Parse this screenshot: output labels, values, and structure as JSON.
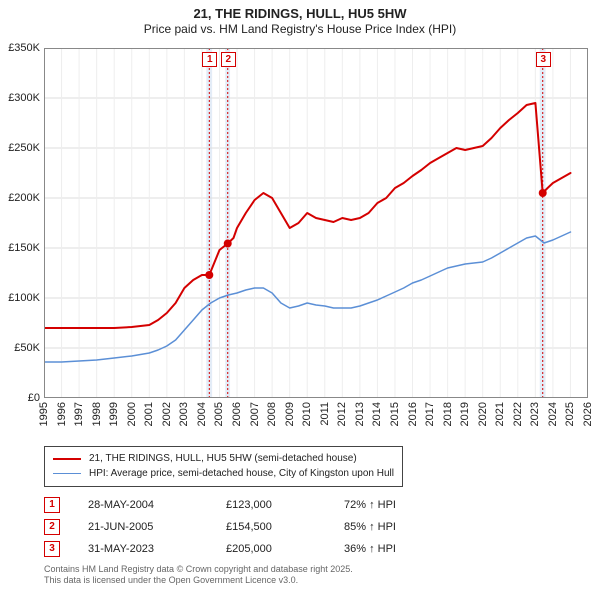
{
  "title_line1": "21, THE RIDINGS, HULL, HU5 5HW",
  "title_line2": "Price paid vs. HM Land Registry's House Price Index (HPI)",
  "chart": {
    "type": "line",
    "x": {
      "min": 1995,
      "max": 2026,
      "tick_step": 1,
      "tick_fontsize": 11,
      "tick_color": "#222222"
    },
    "y": {
      "min": 0,
      "max": 350000,
      "tick_step": 50000,
      "tick_labels": [
        "£0",
        "£50K",
        "£100K",
        "£150K",
        "£200K",
        "£250K",
        "£300K",
        "£350K"
      ],
      "tick_fontsize": 11,
      "tick_color": "#222222"
    },
    "background_color": "#ffffff",
    "grid_color_major": "#dddddd",
    "grid_color_minor": "#eeeeee",
    "frame_color": "#888888",
    "series": [
      {
        "id": "price_paid",
        "label": "21, THE RIDINGS, HULL, HU5 5HW (semi-detached house)",
        "color": "#d40000",
        "line_width": 2,
        "points": [
          [
            1995.0,
            70000
          ],
          [
            1996.0,
            70000
          ],
          [
            1997.0,
            70000
          ],
          [
            1998.0,
            70000
          ],
          [
            1999.0,
            70000
          ],
          [
            2000.0,
            71000
          ],
          [
            2001.0,
            73000
          ],
          [
            2001.5,
            78000
          ],
          [
            2002.0,
            85000
          ],
          [
            2002.5,
            95000
          ],
          [
            2003.0,
            110000
          ],
          [
            2003.5,
            118000
          ],
          [
            2004.0,
            123000
          ],
          [
            2004.42,
            123000
          ],
          [
            2004.7,
            135000
          ],
          [
            2005.0,
            148000
          ],
          [
            2005.47,
            154500
          ],
          [
            2005.8,
            160000
          ],
          [
            2006.0,
            170000
          ],
          [
            2006.5,
            185000
          ],
          [
            2007.0,
            198000
          ],
          [
            2007.5,
            205000
          ],
          [
            2008.0,
            200000
          ],
          [
            2008.5,
            185000
          ],
          [
            2009.0,
            170000
          ],
          [
            2009.5,
            175000
          ],
          [
            2010.0,
            185000
          ],
          [
            2010.5,
            180000
          ],
          [
            2011.0,
            178000
          ],
          [
            2011.5,
            176000
          ],
          [
            2012.0,
            180000
          ],
          [
            2012.5,
            178000
          ],
          [
            2013.0,
            180000
          ],
          [
            2013.5,
            185000
          ],
          [
            2014.0,
            195000
          ],
          [
            2014.5,
            200000
          ],
          [
            2015.0,
            210000
          ],
          [
            2015.5,
            215000
          ],
          [
            2016.0,
            222000
          ],
          [
            2016.5,
            228000
          ],
          [
            2017.0,
            235000
          ],
          [
            2017.5,
            240000
          ],
          [
            2018.0,
            245000
          ],
          [
            2018.5,
            250000
          ],
          [
            2019.0,
            248000
          ],
          [
            2019.5,
            250000
          ],
          [
            2020.0,
            252000
          ],
          [
            2020.5,
            260000
          ],
          [
            2021.0,
            270000
          ],
          [
            2021.5,
            278000
          ],
          [
            2022.0,
            285000
          ],
          [
            2022.5,
            293000
          ],
          [
            2023.0,
            295000
          ],
          [
            2023.42,
            205000
          ],
          [
            2023.7,
            210000
          ],
          [
            2024.0,
            215000
          ],
          [
            2024.5,
            220000
          ],
          [
            2025.0,
            225000
          ]
        ]
      },
      {
        "id": "hpi",
        "label": "HPI: Average price, semi-detached house, City of Kingston upon Hull",
        "color": "#5b8fd6",
        "line_width": 1.5,
        "points": [
          [
            1995.0,
            36000
          ],
          [
            1996.0,
            36000
          ],
          [
            1997.0,
            37000
          ],
          [
            1998.0,
            38000
          ],
          [
            1999.0,
            40000
          ],
          [
            2000.0,
            42000
          ],
          [
            2001.0,
            45000
          ],
          [
            2001.5,
            48000
          ],
          [
            2002.0,
            52000
          ],
          [
            2002.5,
            58000
          ],
          [
            2003.0,
            68000
          ],
          [
            2003.5,
            78000
          ],
          [
            2004.0,
            88000
          ],
          [
            2004.5,
            95000
          ],
          [
            2005.0,
            100000
          ],
          [
            2005.5,
            103000
          ],
          [
            2006.0,
            105000
          ],
          [
            2006.5,
            108000
          ],
          [
            2007.0,
            110000
          ],
          [
            2007.5,
            110000
          ],
          [
            2008.0,
            105000
          ],
          [
            2008.5,
            95000
          ],
          [
            2009.0,
            90000
          ],
          [
            2009.5,
            92000
          ],
          [
            2010.0,
            95000
          ],
          [
            2010.5,
            93000
          ],
          [
            2011.0,
            92000
          ],
          [
            2011.5,
            90000
          ],
          [
            2012.0,
            90000
          ],
          [
            2012.5,
            90000
          ],
          [
            2013.0,
            92000
          ],
          [
            2013.5,
            95000
          ],
          [
            2014.0,
            98000
          ],
          [
            2014.5,
            102000
          ],
          [
            2015.0,
            106000
          ],
          [
            2015.5,
            110000
          ],
          [
            2016.0,
            115000
          ],
          [
            2016.5,
            118000
          ],
          [
            2017.0,
            122000
          ],
          [
            2017.5,
            126000
          ],
          [
            2018.0,
            130000
          ],
          [
            2018.5,
            132000
          ],
          [
            2019.0,
            134000
          ],
          [
            2019.5,
            135000
          ],
          [
            2020.0,
            136000
          ],
          [
            2020.5,
            140000
          ],
          [
            2021.0,
            145000
          ],
          [
            2021.5,
            150000
          ],
          [
            2022.0,
            155000
          ],
          [
            2022.5,
            160000
          ],
          [
            2023.0,
            162000
          ],
          [
            2023.5,
            155000
          ],
          [
            2024.0,
            158000
          ],
          [
            2024.5,
            162000
          ],
          [
            2025.0,
            166000
          ]
        ]
      }
    ],
    "sale_markers": [
      {
        "n": "1",
        "year": 2004.42,
        "value": 123000,
        "color": "#d40000"
      },
      {
        "n": "2",
        "year": 2005.47,
        "value": 154500,
        "color": "#d40000"
      },
      {
        "n": "3",
        "year": 2023.42,
        "value": 205000,
        "color": "#d40000"
      }
    ],
    "shaded_bands": [
      {
        "from": 2004.25,
        "to": 2004.58,
        "color": "#dce7f5"
      },
      {
        "from": 2005.33,
        "to": 2005.6,
        "color": "#dce7f5"
      },
      {
        "from": 2023.25,
        "to": 2023.58,
        "color": "#dce7f5"
      }
    ]
  },
  "legend": {
    "border_color": "#444444",
    "rows": [
      {
        "color": "#d40000",
        "width": 2,
        "label": "21, THE RIDINGS, HULL, HU5 5HW (semi-detached house)"
      },
      {
        "color": "#5b8fd6",
        "width": 1.5,
        "label": "HPI: Average price, semi-detached house, City of Kingston upon Hull"
      }
    ]
  },
  "sales": [
    {
      "n": "1",
      "date": "28-MAY-2004",
      "price": "£123,000",
      "pct": "72% ↑ HPI",
      "color": "#d40000"
    },
    {
      "n": "2",
      "date": "21-JUN-2005",
      "price": "£154,500",
      "pct": "85% ↑ HPI",
      "color": "#d40000"
    },
    {
      "n": "3",
      "date": "31-MAY-2023",
      "price": "£205,000",
      "pct": "36% ↑ HPI",
      "color": "#d40000"
    }
  ],
  "footer": {
    "line1": "Contains HM Land Registry data © Crown copyright and database right 2025.",
    "line2": "This data is licensed under the Open Government Licence v3.0."
  }
}
